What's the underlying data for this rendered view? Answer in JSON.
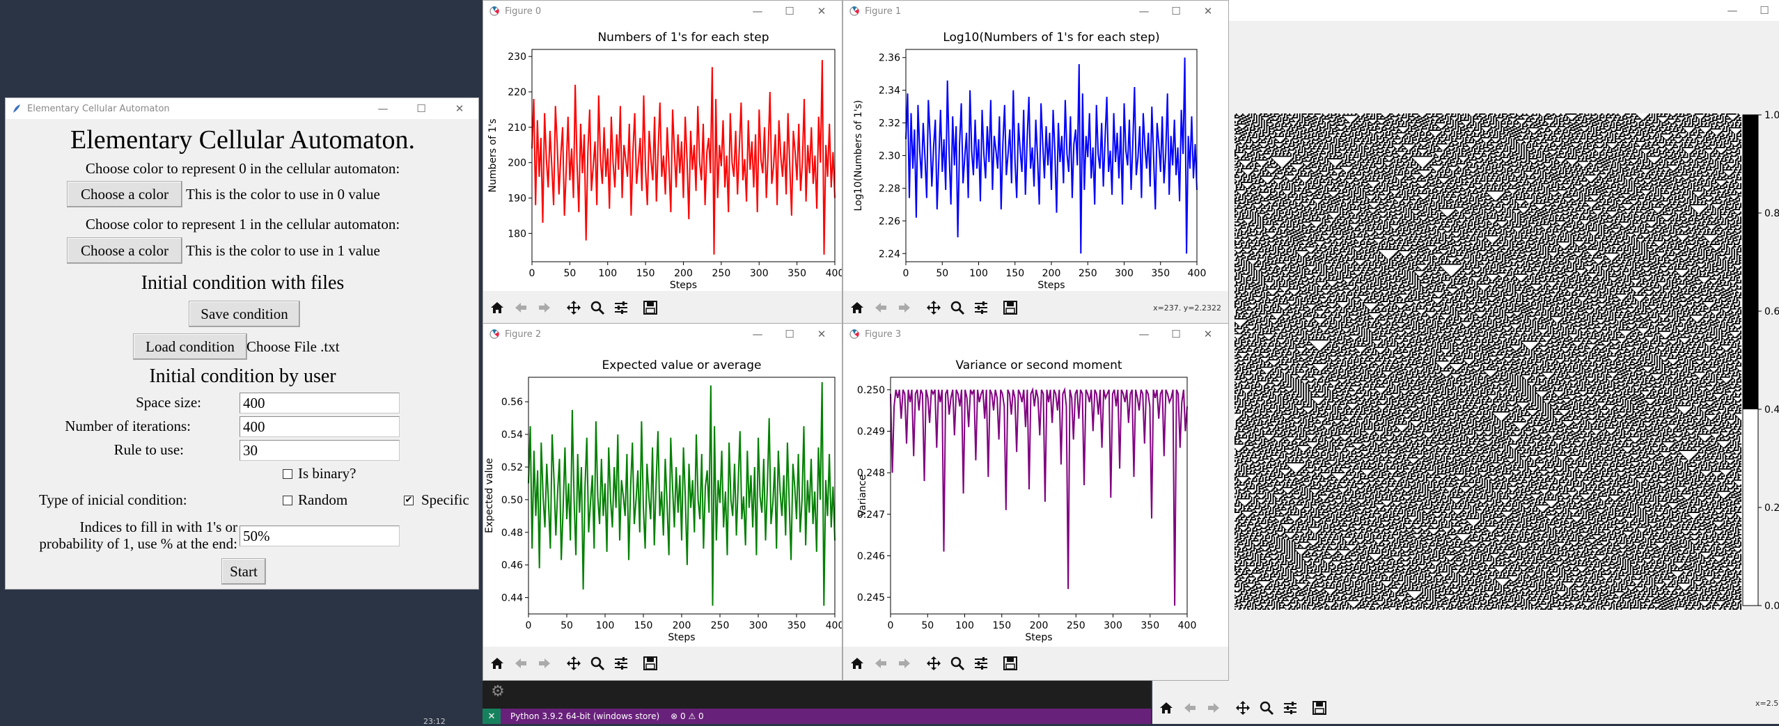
{
  "tk_app": {
    "title": "Elementary Cellular Automaton",
    "heading": "Elementary Cellular Automaton.",
    "color0_prompt": "Choose color to represent 0 in the cellular automaton:",
    "color0_button": "Choose a color",
    "color0_text": "This is the color to use in 0 value",
    "color1_prompt": "Choose color to represent 1 in the cellular automaton:",
    "color1_button": "Choose a color",
    "color1_text": "This is the color to use in 1 value",
    "files_heading": "Initial condition with files",
    "save_button": "Save condition",
    "load_button": "Load condition",
    "choose_file_text": "Choose File .txt",
    "user_heading": "Initial condition by user",
    "space_label": "Space size:",
    "space_value": "400",
    "iter_label": "Number of iterations:",
    "iter_value": "400",
    "rule_label": "Rule to use:",
    "rule_value": "30",
    "binary_label": "Is binary?",
    "type_label": "Type of inicial condition:",
    "random_label": "Random",
    "specific_label": "Specific",
    "indices_label_1": "Indices to fill in with 1's or",
    "indices_label_2": "probability of 1, use % at the end:",
    "indices_value": "50%",
    "start_button": "Start"
  },
  "figures": [
    {
      "window_title": "Figure 0",
      "status": "",
      "color": "#ff0000"
    },
    {
      "window_title": "Figure 1",
      "status": "x=237. y=2.2322",
      "color": "#0000ff"
    },
    {
      "window_title": "Figure 2",
      "status": "",
      "color": "#008000"
    },
    {
      "window_title": "Figure 3",
      "status": "",
      "color": "#800080"
    }
  ],
  "chart_data": [
    {
      "type": "line",
      "title": "Numbers of 1's for each step",
      "xlabel": "Steps",
      "ylabel": "Numbers of 1's",
      "xlim": [
        0,
        400
      ],
      "ylim": [
        172,
        232
      ],
      "xticks": [
        "0",
        "50",
        "100",
        "150",
        "200",
        "250",
        "300",
        "350",
        "400"
      ],
      "yticks": [
        "180",
        "190",
        "200",
        "210",
        "220",
        "230"
      ],
      "series": [
        {
          "color": "#ff0000",
          "values": [
            204,
            218,
            188,
            212,
            196,
            207,
            183,
            214,
            201,
            193,
            209,
            199,
            188,
            216,
            205,
            191,
            202,
            210,
            185,
            198,
            213,
            195,
            204,
            190,
            222,
            200,
            186,
            211,
            197,
            208,
            178,
            203,
            215,
            192,
            199,
            206,
            188,
            219,
            201,
            194,
            210,
            196,
            204,
            187,
            213,
            200,
            193,
            208,
            198,
            216,
            190,
            205,
            201,
            196,
            211,
            185,
            203,
            214,
            194,
            200,
            207,
            192,
            219,
            198,
            188,
            209,
            201,
            195,
            213,
            189,
            204,
            217,
            196,
            202,
            191,
            210,
            199,
            186,
            215,
            203,
            193,
            208,
            197,
            206,
            190,
            213,
            201,
            184,
            209,
            198,
            205,
            192,
            216,
            200,
            195,
            211,
            188,
            203,
            207,
            197,
            227,
            174,
            218,
            190,
            205,
            199,
            212,
            193,
            202,
            186,
            214,
            200,
            196,
            209,
            191,
            204,
            217,
            195,
            201,
            189,
            212,
            198,
            206,
            193,
            208,
            186,
            215,
            201,
            197,
            210,
            190,
            203,
            220,
            194,
            199,
            208,
            188,
            212,
            202,
            196,
            206,
            191,
            214,
            199,
            185,
            209,
            203,
            195,
            211,
            192,
            200,
            218,
            189,
            205,
            197,
            210,
            194,
            202,
            187,
            213,
            200,
            229,
            174,
            205,
            196,
            211,
            193,
            203,
            190
          ]
        }
      ]
    },
    {
      "type": "line",
      "title": "Log10(Numbers of 1's for each step)",
      "xlabel": "Steps",
      "ylabel": "Log10(Numbers of 1's)",
      "xlim": [
        0,
        400
      ],
      "ylim": [
        2.235,
        2.365
      ],
      "xticks": [
        "0",
        "50",
        "100",
        "150",
        "200",
        "250",
        "300",
        "350",
        "400"
      ],
      "yticks": [
        "2.24",
        "2.26",
        "2.28",
        "2.30",
        "2.32",
        "2.34",
        "2.36"
      ],
      "series": [
        {
          "color": "#0000ff",
          "values": [
            2.31,
            2.338,
            2.274,
            2.326,
            2.292,
            2.316,
            2.262,
            2.331,
            2.303,
            2.286,
            2.32,
            2.299,
            2.274,
            2.334,
            2.312,
            2.281,
            2.305,
            2.322,
            2.267,
            2.297,
            2.328,
            2.29,
            2.31,
            2.279,
            2.346,
            2.301,
            2.27,
            2.324,
            2.294,
            2.318,
            2.25,
            2.307,
            2.332,
            2.283,
            2.299,
            2.314,
            2.274,
            2.34,
            2.303,
            2.288,
            2.322,
            2.292,
            2.31,
            2.272,
            2.328,
            2.301,
            2.286,
            2.318,
            2.296,
            2.334,
            2.279,
            2.312,
            2.303,
            2.292,
            2.324,
            2.267,
            2.307,
            2.331,
            2.288,
            2.301,
            2.316,
            2.283,
            2.34,
            2.296,
            2.274,
            2.32,
            2.303,
            2.29,
            2.328,
            2.276,
            2.31,
            2.336,
            2.292,
            2.305,
            2.281,
            2.322,
            2.299,
            2.27,
            2.332,
            2.307,
            2.286,
            2.318,
            2.294,
            2.314,
            2.279,
            2.328,
            2.303,
            2.265,
            2.32,
            2.296,
            2.312,
            2.283,
            2.334,
            2.301,
            2.29,
            2.324,
            2.274,
            2.307,
            2.316,
            2.294,
            2.356,
            2.24,
            2.338,
            2.279,
            2.312,
            2.299,
            2.326,
            2.286,
            2.305,
            2.27,
            2.331,
            2.301,
            2.292,
            2.32,
            2.281,
            2.31,
            2.336,
            2.29,
            2.303,
            2.276,
            2.326,
            2.296,
            2.314,
            2.286,
            2.318,
            2.27,
            2.332,
            2.303,
            2.294,
            2.322,
            2.279,
            2.307,
            2.342,
            2.288,
            2.299,
            2.318,
            2.274,
            2.326,
            2.305,
            2.292,
            2.314,
            2.281,
            2.33,
            2.299,
            2.267,
            2.32,
            2.307,
            2.29,
            2.324,
            2.283,
            2.301,
            2.338,
            2.276,
            2.312,
            2.294,
            2.322,
            2.288,
            2.305,
            2.272,
            2.328,
            2.301,
            2.36,
            2.24,
            2.312,
            2.292,
            2.324,
            2.286,
            2.307,
            2.279
          ]
        }
      ]
    },
    {
      "type": "line",
      "title": "Expected value or average",
      "xlabel": "Steps",
      "ylabel": "Expected value",
      "xlim": [
        0,
        400
      ],
      "ylim": [
        0.43,
        0.575
      ],
      "xticks": [
        "0",
        "50",
        "100",
        "150",
        "200",
        "250",
        "300",
        "350",
        "400"
      ],
      "yticks": [
        "0.44",
        "0.46",
        "0.48",
        "0.50",
        "0.52",
        "0.54",
        "0.56"
      ],
      "series": [
        {
          "color": "#008000",
          "values": [
            0.51,
            0.545,
            0.47,
            0.53,
            0.49,
            0.518,
            0.458,
            0.535,
            0.502,
            0.483,
            0.522,
            0.498,
            0.47,
            0.54,
            0.512,
            0.478,
            0.505,
            0.525,
            0.463,
            0.495,
            0.532,
            0.488,
            0.51,
            0.475,
            0.555,
            0.5,
            0.466,
            0.528,
            0.492,
            0.52,
            0.445,
            0.508,
            0.538,
            0.48,
            0.498,
            0.515,
            0.47,
            0.548,
            0.502,
            0.485,
            0.525,
            0.49,
            0.51,
            0.468,
            0.532,
            0.5,
            0.483,
            0.52,
            0.495,
            0.54,
            0.475,
            0.512,
            0.502,
            0.49,
            0.528,
            0.463,
            0.508,
            0.535,
            0.485,
            0.5,
            0.518,
            0.48,
            0.548,
            0.495,
            0.47,
            0.522,
            0.502,
            0.488,
            0.532,
            0.472,
            0.51,
            0.542,
            0.49,
            0.505,
            0.478,
            0.525,
            0.498,
            0.466,
            0.538,
            0.508,
            0.483,
            0.52,
            0.492,
            0.515,
            0.475,
            0.532,
            0.502,
            0.46,
            0.522,
            0.495,
            0.512,
            0.48,
            0.54,
            0.5,
            0.488,
            0.528,
            0.47,
            0.508,
            0.518,
            0.492,
            0.57,
            0.435,
            0.545,
            0.475,
            0.512,
            0.498,
            0.53,
            0.483,
            0.505,
            0.466,
            0.535,
            0.5,
            0.49,
            0.522,
            0.478,
            0.51,
            0.542,
            0.488,
            0.502,
            0.472,
            0.53,
            0.495,
            0.515,
            0.483,
            0.52,
            0.466,
            0.538,
            0.502,
            0.492,
            0.525,
            0.475,
            0.508,
            0.55,
            0.485,
            0.498,
            0.52,
            0.47,
            0.53,
            0.505,
            0.49,
            0.515,
            0.478,
            0.535,
            0.498,
            0.463,
            0.522,
            0.508,
            0.488,
            0.528,
            0.48,
            0.5,
            0.545,
            0.472,
            0.512,
            0.492,
            0.525,
            0.485,
            0.505,
            0.468,
            0.532,
            0.5,
            0.572,
            0.435,
            0.512,
            0.49,
            0.528,
            0.483,
            0.508,
            0.475
          ]
        }
      ]
    },
    {
      "type": "line",
      "title": "Variance or second moment",
      "xlabel": "Steps",
      "ylabel": "Variance",
      "xlim": [
        0,
        400
      ],
      "ylim": [
        0.2446,
        0.2503
      ],
      "xticks": [
        "0",
        "50",
        "100",
        "150",
        "200",
        "250",
        "300",
        "350",
        "400"
      ],
      "yticks": [
        "0.245",
        "0.246",
        "0.247",
        "0.248",
        "0.249",
        "0.250"
      ],
      "series": [
        {
          "color": "#800080",
          "values": [
            0.2499,
            0.248,
            0.2496,
            0.25,
            0.2498,
            0.25,
            0.2493,
            0.25,
            0.2499,
            0.2487,
            0.25,
            0.2497,
            0.25,
            0.2484,
            0.2499,
            0.25,
            0.2495,
            0.25,
            0.2499,
            0.2478,
            0.25,
            0.2498,
            0.2492,
            0.25,
            0.2499,
            0.25,
            0.2486,
            0.25,
            0.2497,
            0.25,
            0.2461,
            0.2499,
            0.25,
            0.2494,
            0.2498,
            0.25,
            0.2489,
            0.25,
            0.2499,
            0.2496,
            0.25,
            0.2475,
            0.25,
            0.2498,
            0.2491,
            0.25,
            0.2499,
            0.25,
            0.2483,
            0.25,
            0.2497,
            0.2499,
            0.25,
            0.2493,
            0.25,
            0.2479,
            0.25,
            0.2499,
            0.2495,
            0.25,
            0.2498,
            0.2488,
            0.25,
            0.2499,
            0.2496,
            0.2471,
            0.25,
            0.2499,
            0.2494,
            0.25,
            0.2498,
            0.2485,
            0.25,
            0.2499,
            0.2497,
            0.25,
            0.2491,
            0.25,
            0.2476,
            0.2499,
            0.25,
            0.2496,
            0.25,
            0.2498,
            0.2489,
            0.25,
            0.2499,
            0.2473,
            0.25,
            0.2497,
            0.25,
            0.2492,
            0.25,
            0.2499,
            0.2495,
            0.25,
            0.2482,
            0.2499,
            0.25,
            0.2496,
            0.2452,
            0.25,
            0.2498,
            0.2488,
            0.2499,
            0.25,
            0.2493,
            0.25,
            0.2499,
            0.2477,
            0.25,
            0.2499,
            0.2497,
            0.25,
            0.249,
            0.25,
            0.2499,
            0.2494,
            0.25,
            0.2486,
            0.25,
            0.2498,
            0.2499,
            0.25,
            0.2474,
            0.2499,
            0.25,
            0.2496,
            0.25,
            0.2481,
            0.25,
            0.2499,
            0.2497,
            0.25,
            0.2492,
            0.2499,
            0.25,
            0.2479,
            0.25,
            0.2498,
            0.2495,
            0.25,
            0.2499,
            0.2487,
            0.25,
            0.2499,
            0.2496,
            0.2469,
            0.25,
            0.2498,
            0.25,
            0.2493,
            0.2499,
            0.25,
            0.2484,
            0.25,
            0.2499,
            0.2497,
            0.2498,
            0.25,
            0.2448,
            0.25,
            0.2499,
            0.2486,
            0.2497,
            0.25,
            0.249,
            0.2496
          ]
        }
      ]
    },
    {
      "type": "heatmap",
      "title": "",
      "rule": 30,
      "size": 400,
      "iterations": 400,
      "colorbar_ticks": [
        "0.0",
        "0.2",
        "0.4",
        "0.6",
        "0.8",
        "1.0"
      ],
      "colorbar_colors": [
        "#ffffff",
        "#000000"
      ]
    }
  ],
  "taskbar": {
    "python_label": "Python 3.9.2 64-bit (windows store)",
    "problems": "0",
    "warnings": "0",
    "clock_partial": "23:12",
    "right_status": "x=2.5",
    "accent": "#68217a"
  }
}
